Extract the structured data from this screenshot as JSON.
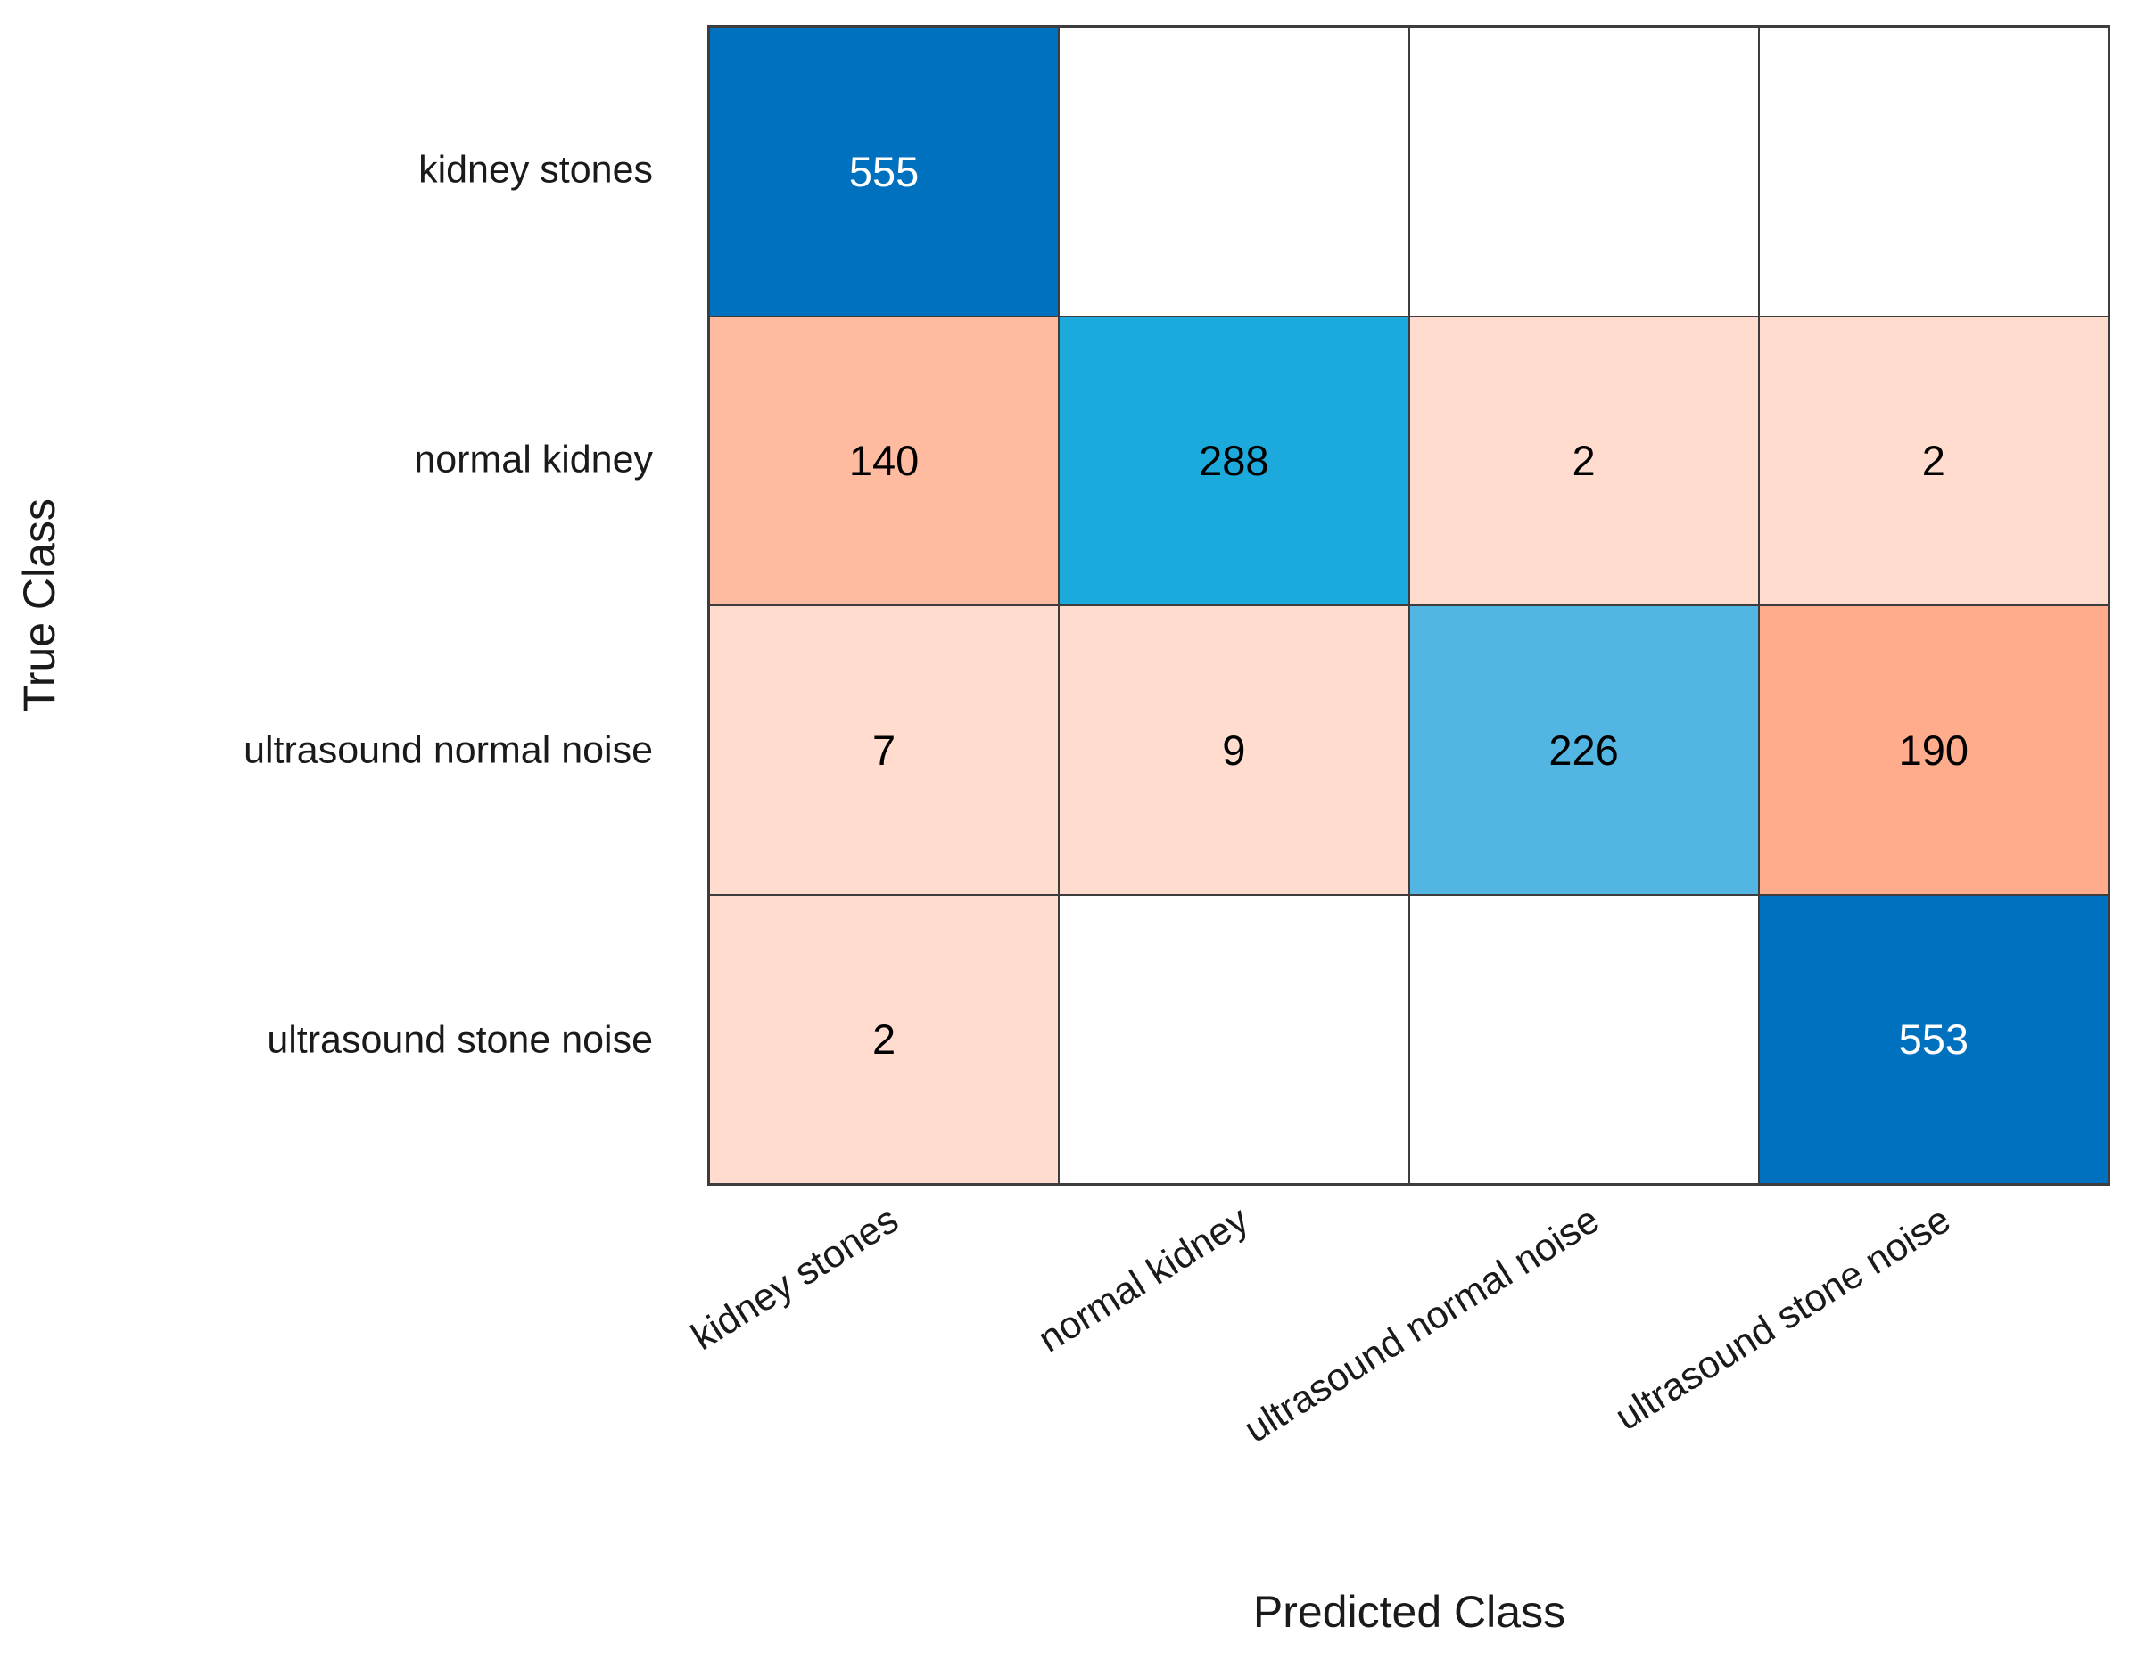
{
  "chart_data": {
    "type": "heatmap",
    "title": "",
    "xlabel": "Predicted Class",
    "ylabel": "True Class",
    "x_categories": [
      "kidney stones",
      "normal kidney",
      "ultrasound normal noise",
      "ultrasound stone noise"
    ],
    "y_categories": [
      "kidney stones",
      "normal kidney",
      "ultrasound normal noise",
      "ultrasound stone noise"
    ],
    "matrix": [
      [
        555,
        null,
        null,
        null
      ],
      [
        140,
        288,
        2,
        2
      ],
      [
        7,
        9,
        226,
        190
      ],
      [
        2,
        null,
        null,
        553
      ]
    ],
    "cell_colors": [
      [
        "#0071BE",
        "#FFFFFF",
        "#FFFFFF",
        "#FFFFFF"
      ],
      [
        "#FFBBA0",
        "#1CA9DB",
        "#FFDCCE",
        "#FFDCCE"
      ],
      [
        "#FFDCCE",
        "#FFDCCE",
        "#53B5E2",
        "#FFAC8D"
      ],
      [
        "#FFDCCE",
        "#FFFFFF",
        "#FFFFFF",
        "#0071BE"
      ]
    ],
    "cell_text_colors": [
      [
        "#FFFFFF",
        "#000000",
        "#000000",
        "#000000"
      ],
      [
        "#000000",
        "#000000",
        "#000000",
        "#000000"
      ],
      [
        "#000000",
        "#000000",
        "#000000",
        "#000000"
      ],
      [
        "#000000",
        "#000000",
        "#000000",
        "#FFFFFF"
      ]
    ],
    "grid_line_color": "#3d3d3d",
    "legend": "off",
    "x_tick_rotation_deg": -32
  }
}
